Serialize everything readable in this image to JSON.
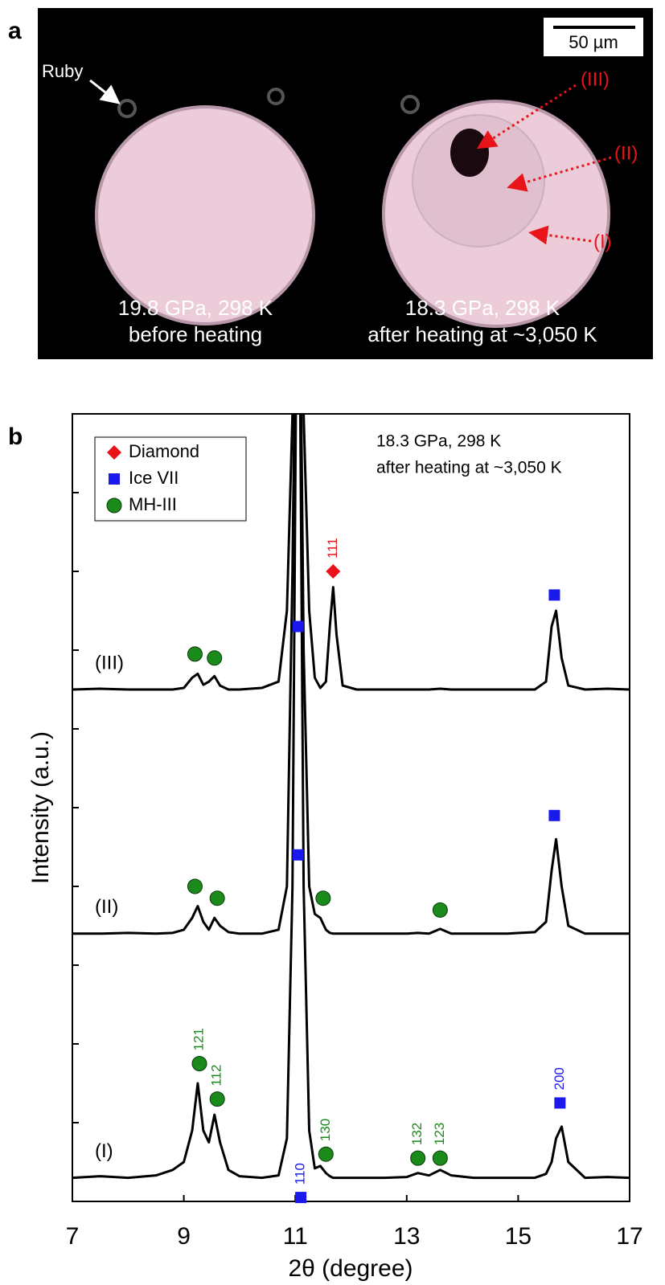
{
  "panel_a": {
    "panel_label": "a",
    "scale_bar": "50 µm",
    "ruby_label": "Ruby",
    "region_labels": [
      "(III)",
      "(II)",
      "(I)"
    ],
    "left_caption": [
      "19.8 GPa, 298 K",
      "before heating"
    ],
    "right_caption": [
      "18.3 GPa, 298 K",
      "after heating at ~3,050 K"
    ]
  },
  "chart_data": {
    "type": "line",
    "panel_label": "b",
    "xlabel": "2θ (degree)",
    "ylabel": "Intensity (a.u.)",
    "annotations": [
      "18.3 GPa, 298 K",
      "after heating at ~3,050 K"
    ],
    "xlim": [
      7,
      17
    ],
    "xticks": [
      7,
      9,
      11,
      13,
      15,
      17
    ],
    "ylim": [
      0,
      10
    ],
    "yticks": [
      1,
      2,
      3,
      4,
      5,
      6,
      7,
      8,
      9
    ],
    "x": [
      7,
      7.5,
      8,
      8.5,
      8.8,
      9.0,
      9.15,
      9.25,
      9.35,
      9.45,
      9.55,
      9.65,
      9.8,
      10.0,
      10.4,
      10.7,
      10.85,
      10.95,
      11.05,
      11.15,
      11.25,
      11.35,
      11.45,
      11.55,
      11.62,
      11.68,
      11.74,
      11.85,
      12.1,
      12.6,
      13.0,
      13.2,
      13.4,
      13.6,
      13.8,
      14.2,
      14.8,
      15.3,
      15.5,
      15.6,
      15.68,
      15.78,
      15.9,
      16.2,
      16.6,
      17
    ],
    "series": [
      {
        "name": "(I)",
        "color": "#000000",
        "values": [
          0.3,
          0.32,
          0.3,
          0.33,
          0.4,
          0.5,
          0.9,
          1.5,
          0.9,
          0.75,
          1.1,
          0.75,
          0.4,
          0.32,
          0.3,
          0.33,
          0.8,
          4,
          14,
          4,
          0.9,
          0.42,
          0.45,
          0.36,
          0.32,
          0.3,
          0.3,
          0.3,
          0.3,
          0.3,
          0.31,
          0.36,
          0.33,
          0.4,
          0.33,
          0.3,
          0.3,
          0.3,
          0.35,
          0.5,
          0.8,
          0.95,
          0.5,
          0.3,
          0.31,
          0.3
        ]
      },
      {
        "name": "(II)",
        "color": "#000000",
        "values": [
          3.4,
          3.4,
          3.41,
          3.4,
          3.41,
          3.45,
          3.6,
          3.75,
          3.55,
          3.45,
          3.6,
          3.5,
          3.42,
          3.4,
          3.4,
          3.45,
          4,
          8,
          14,
          7,
          4,
          3.65,
          3.6,
          3.45,
          3.41,
          3.4,
          3.4,
          3.4,
          3.4,
          3.4,
          3.4,
          3.41,
          3.4,
          3.46,
          3.4,
          3.4,
          3.4,
          3.42,
          3.55,
          4.2,
          4.6,
          4.0,
          3.5,
          3.4,
          3.4,
          3.4
        ]
      },
      {
        "name": "(III)",
        "color": "#000000",
        "values": [
          6.5,
          6.51,
          6.5,
          6.5,
          6.5,
          6.52,
          6.65,
          6.7,
          6.56,
          6.6,
          6.67,
          6.55,
          6.5,
          6.5,
          6.52,
          6.6,
          7.5,
          10,
          14,
          10,
          7.5,
          6.65,
          6.52,
          6.6,
          7.3,
          7.8,
          7.2,
          6.55,
          6.5,
          6.5,
          6.5,
          6.5,
          6.5,
          6.51,
          6.5,
          6.5,
          6.5,
          6.5,
          6.6,
          7.3,
          7.5,
          6.9,
          6.55,
          6.5,
          6.51,
          6.5
        ]
      }
    ],
    "phases": [
      {
        "name": "Diamond",
        "color": "#e8141a",
        "shape": "diamond",
        "peaks": [
          {
            "x": 11.68,
            "y": 8.0,
            "label": "111"
          }
        ]
      },
      {
        "name": "Ice VII",
        "color": "#1a1aee",
        "shape": "square",
        "peaks": [
          {
            "x": 11.05,
            "y": 7.3
          },
          {
            "x": 15.65,
            "y": 7.7
          },
          {
            "x": 11.05,
            "y": 4.4
          },
          {
            "x": 15.65,
            "y": 4.9
          },
          {
            "x": 11.1,
            "y": 0.05,
            "label": "110"
          },
          {
            "x": 15.75,
            "y": 1.25,
            "label": "200"
          }
        ]
      },
      {
        "name": "MH-III",
        "color": "#1a8a1a",
        "shape": "circle",
        "peaks": [
          {
            "x": 9.2,
            "y": 6.95
          },
          {
            "x": 9.55,
            "y": 6.9
          },
          {
            "x": 9.2,
            "y": 4.0
          },
          {
            "x": 9.6,
            "y": 3.85
          },
          {
            "x": 11.5,
            "y": 3.85
          },
          {
            "x": 13.6,
            "y": 3.7
          },
          {
            "x": 9.28,
            "y": 1.75,
            "label": "121"
          },
          {
            "x": 9.6,
            "y": 1.3,
            "label": "112"
          },
          {
            "x": 11.55,
            "y": 0.6,
            "label": "130"
          },
          {
            "x": 13.2,
            "y": 0.55,
            "label": "132"
          },
          {
            "x": 13.6,
            "y": 0.55,
            "label": "123"
          }
        ]
      }
    ]
  }
}
